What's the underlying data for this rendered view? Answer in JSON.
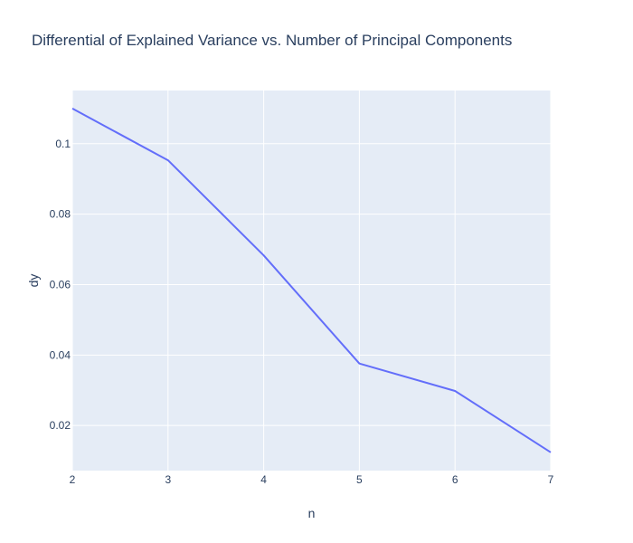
{
  "chart_data": {
    "type": "line",
    "title": "Differential of Explained Variance vs. Number of Principal Components",
    "xlabel": "n",
    "ylabel": "dy",
    "x": [
      2,
      3,
      4,
      5,
      6,
      7
    ],
    "series": [
      {
        "values": [
          0.11,
          0.0953,
          0.0683,
          0.0376,
          0.0298,
          0.0124
        ]
      }
    ],
    "xlim": [
      2,
      7
    ],
    "ylim": [
      0.0072,
      0.1151
    ],
    "xticks": [
      "2",
      "3",
      "4",
      "5",
      "6",
      "7"
    ],
    "yticks": [
      0.02,
      0.04,
      0.06,
      0.08,
      0.1
    ],
    "ytick_labels": [
      "0.02",
      "0.04",
      "0.06",
      "0.08",
      "0.1"
    ],
    "grid": true,
    "colors": {
      "line": "#636efa",
      "plot_bg": "#e5ecf6",
      "grid": "#ffffff",
      "text": "#2a3f5f"
    }
  }
}
